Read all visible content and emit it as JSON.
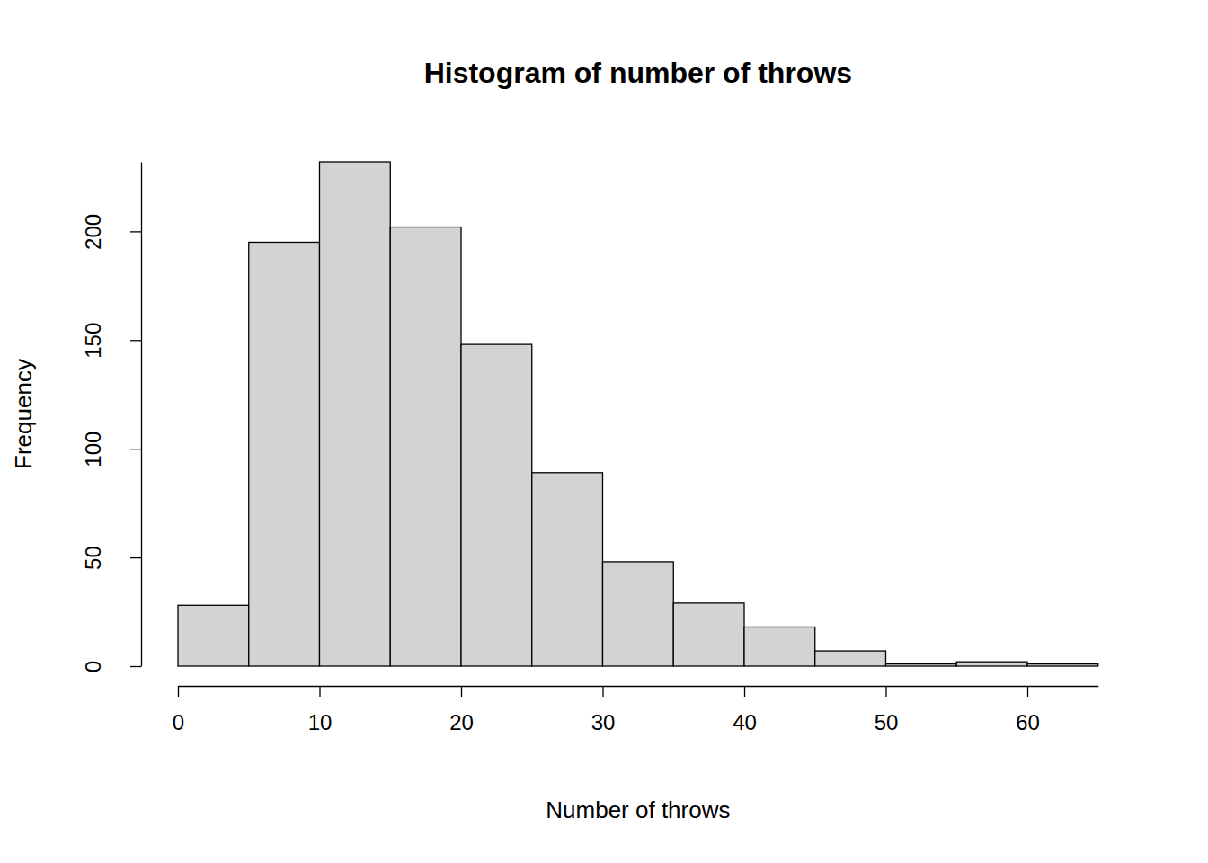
{
  "chart_data": {
    "type": "histogram",
    "title": "Histogram of number of throws",
    "x_label": "Number of throws",
    "y_label": "Frequency",
    "bins": [
      0,
      5,
      10,
      15,
      20,
      25,
      30,
      35,
      40,
      45,
      50,
      55,
      60,
      65
    ],
    "values": [
      28,
      195,
      232,
      202,
      148,
      89,
      48,
      29,
      18,
      7,
      1,
      2,
      1
    ],
    "color": "#d3d3d3",
    "xlim": [
      0,
      65
    ],
    "ylim": [
      0,
      232
    ],
    "xticks": [
      0,
      10,
      20,
      30,
      40,
      50,
      60
    ],
    "yticks": [
      0,
      50,
      100,
      150,
      200
    ]
  }
}
